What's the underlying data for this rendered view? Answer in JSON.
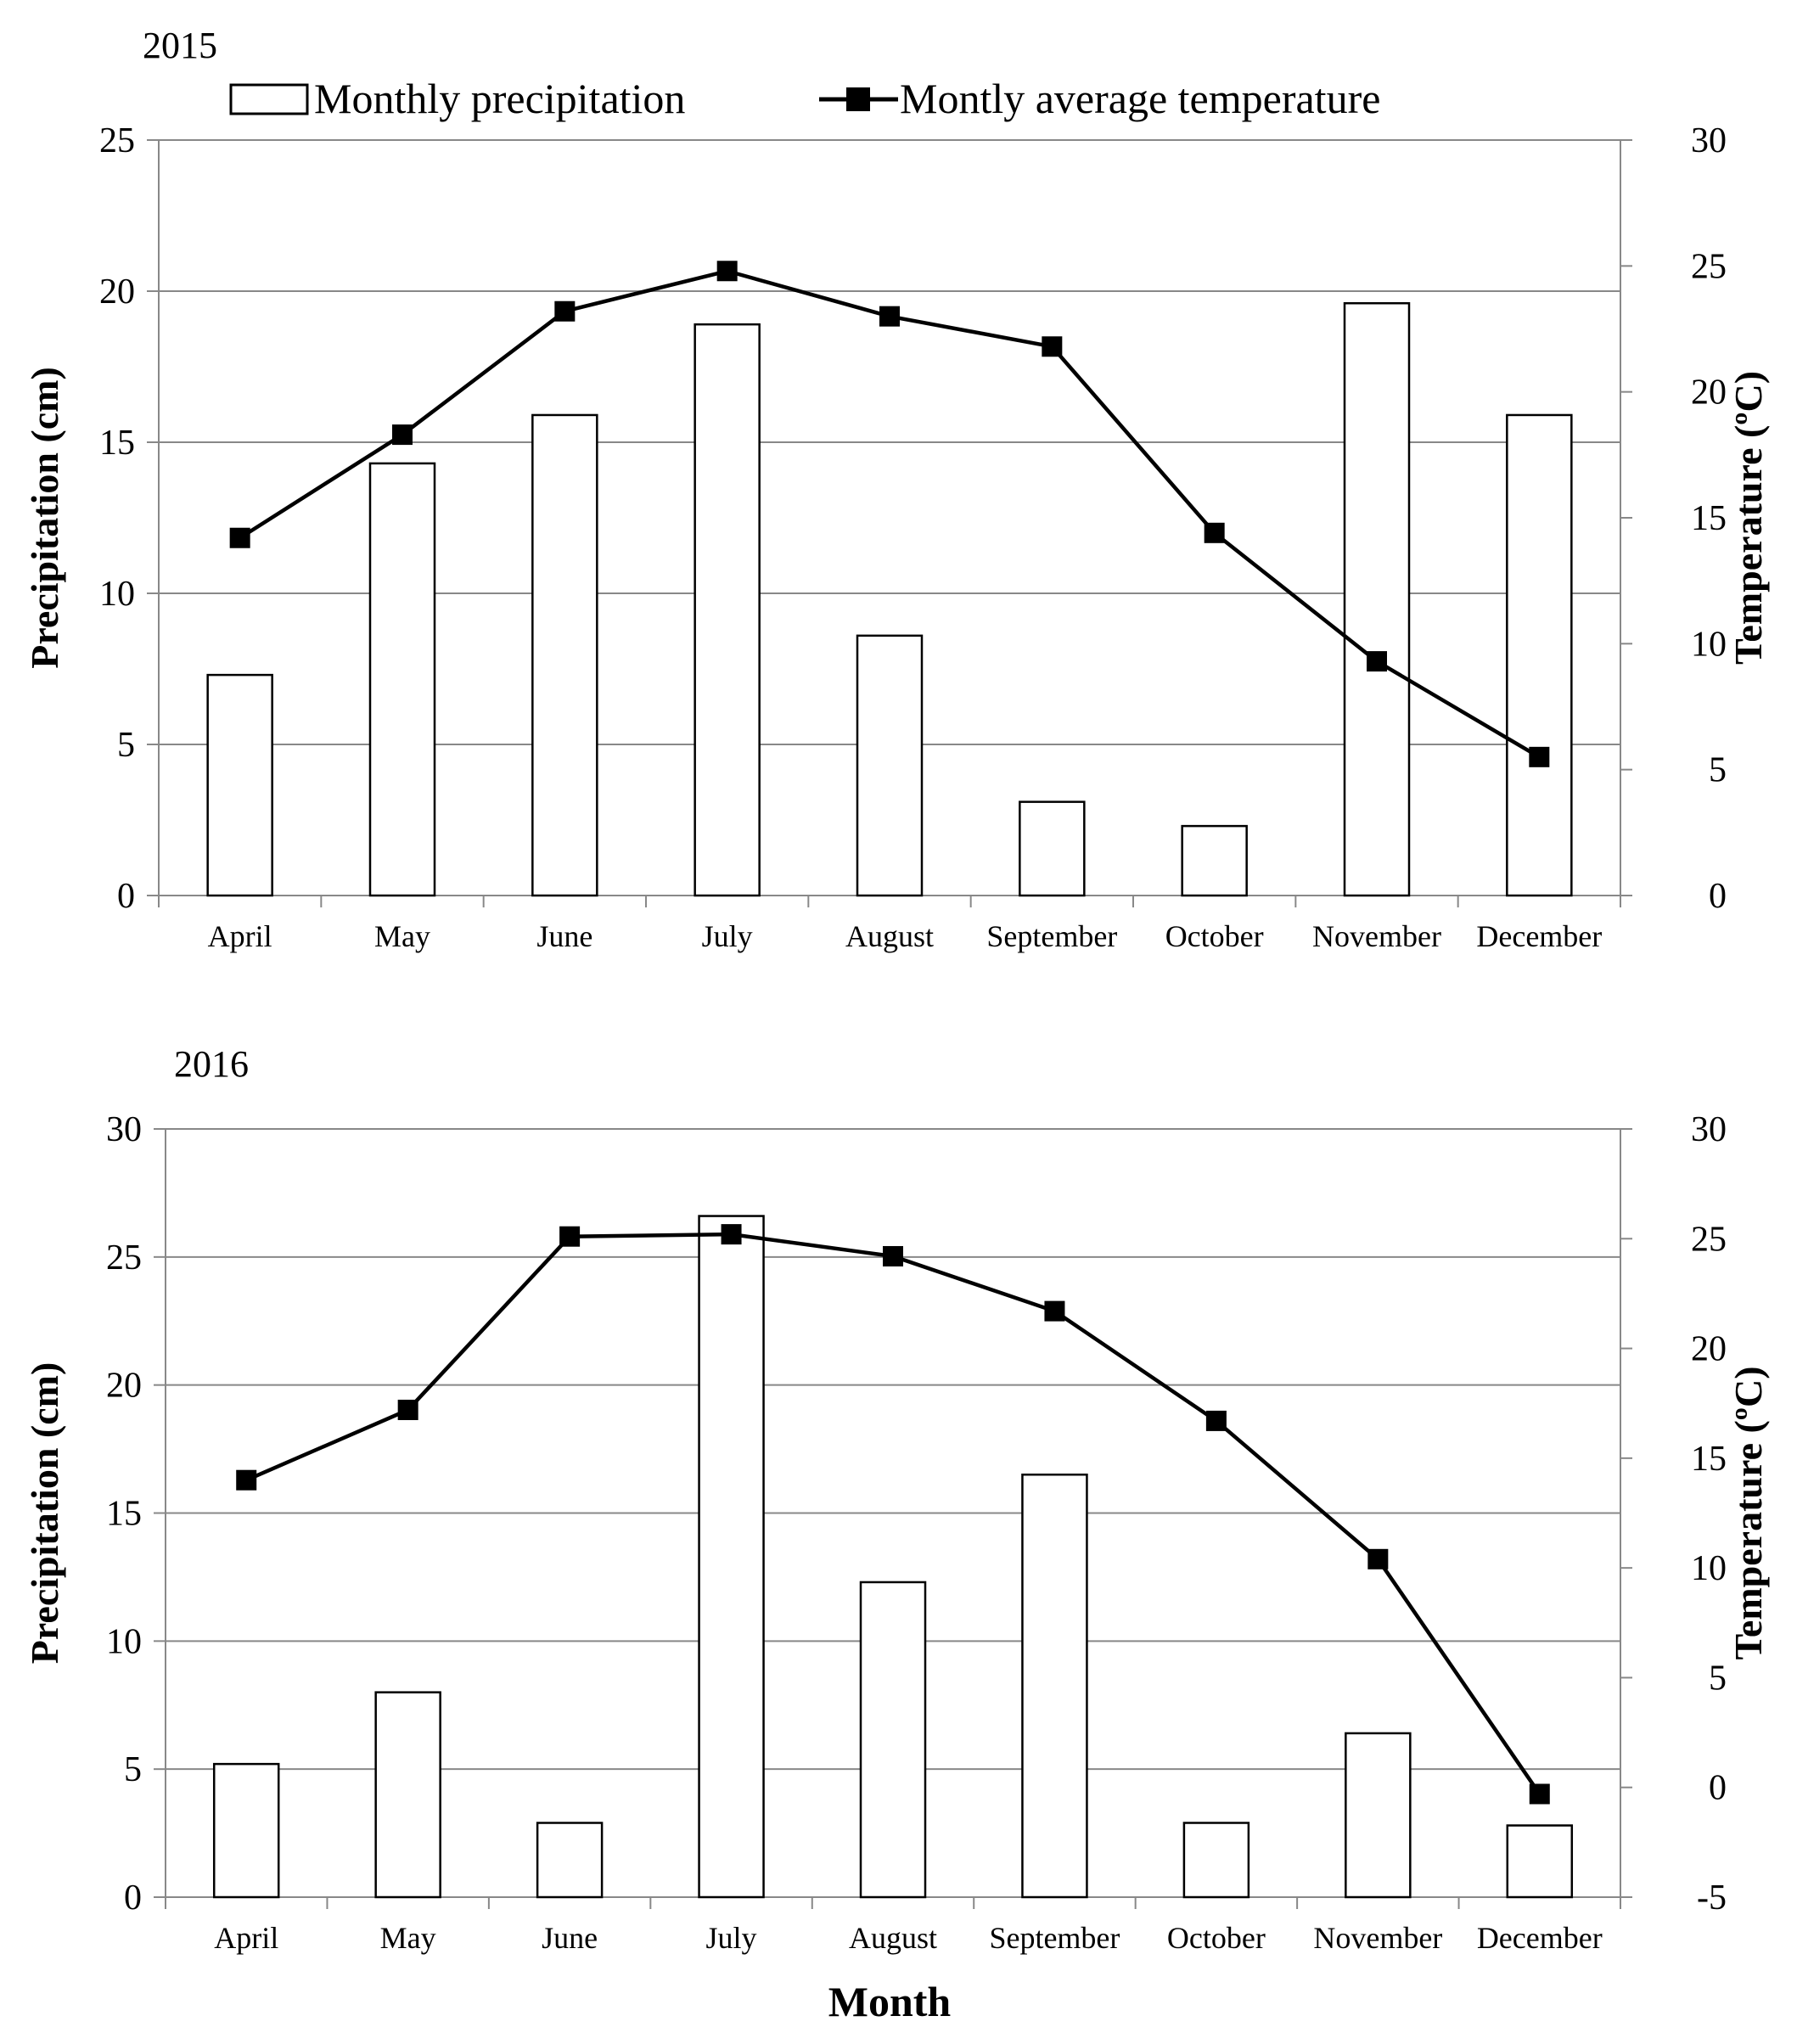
{
  "legend": {
    "precip_label": "Monthly precipitation",
    "temp_label": "Montly average temperature"
  },
  "xlabel": "Month",
  "chart_data": [
    {
      "type": "bar",
      "title": "2015",
      "categories": [
        "April",
        "May",
        "June",
        "July",
        "August",
        "September",
        "October",
        "November",
        "December"
      ],
      "series": [
        {
          "name": "Monthly precipitation",
          "kind": "bar",
          "axis": "left",
          "values": [
            7.3,
            14.3,
            15.9,
            18.9,
            8.6,
            3.1,
            2.3,
            19.6,
            15.9
          ]
        },
        {
          "name": "Montly average temperature",
          "kind": "line",
          "axis": "right",
          "values": [
            14.2,
            18.3,
            23.2,
            24.8,
            23.0,
            21.8,
            14.4,
            9.3,
            5.5
          ]
        }
      ],
      "ylabel": "Precipitation (cm)",
      "y2label": "Temperature (ºC)",
      "ylim": [
        0,
        25
      ],
      "y2lim": [
        0,
        30
      ],
      "yticks": [
        0,
        5,
        10,
        15,
        20,
        25
      ],
      "y2ticks": [
        0,
        5,
        10,
        15,
        20,
        25,
        30
      ],
      "grid": true,
      "legend_position": "top"
    },
    {
      "type": "bar",
      "title": "2016",
      "categories": [
        "April",
        "May",
        "June",
        "July",
        "August",
        "September",
        "October",
        "November",
        "December"
      ],
      "series": [
        {
          "name": "Monthly precipitation",
          "kind": "bar",
          "axis": "left",
          "values": [
            5.2,
            8.0,
            2.9,
            26.6,
            12.3,
            16.5,
            2.9,
            6.4,
            2.8
          ]
        },
        {
          "name": "Montly average temperature",
          "kind": "line",
          "axis": "right",
          "values": [
            14.0,
            17.2,
            25.1,
            25.2,
            24.2,
            21.7,
            16.7,
            10.4,
            -0.3
          ]
        }
      ],
      "ylabel": "Precipitation (cm)",
      "y2label": "Temperature (ºC)",
      "ylim": [
        0,
        30
      ],
      "y2lim": [
        -5,
        30
      ],
      "yticks": [
        0,
        5,
        10,
        15,
        20,
        25,
        30
      ],
      "y2ticks": [
        -5,
        0,
        5,
        10,
        15,
        20,
        25,
        30
      ],
      "grid": true,
      "legend_position": "none"
    }
  ]
}
